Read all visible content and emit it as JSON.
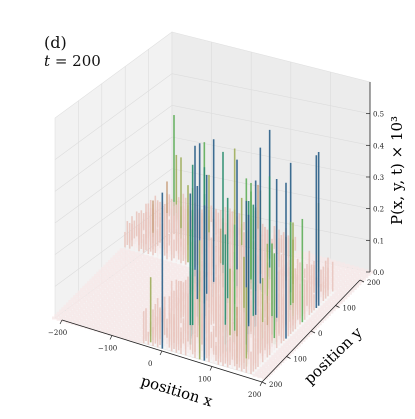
{
  "panel": {
    "label": "(d)",
    "time_prefix": "t",
    "time_value": "= 200"
  },
  "chart_data": {
    "type": "surface",
    "title": "",
    "xlabel": "position x",
    "ylabel": "position y",
    "zlabel": "P(x, y, t) × 10³",
    "xlim": [
      -200,
      200
    ],
    "ylim": [
      -200,
      200
    ],
    "zlim": [
      0,
      0.6
    ],
    "x_ticks": [
      "−200",
      "−100",
      "0",
      "100",
      "200"
    ],
    "y_ticks": [
      "200",
      "100",
      "0",
      "100",
      "200"
    ],
    "z_ticks": [
      "0.0",
      "0.1",
      "0.2",
      "0.3",
      "0.4",
      "0.5"
    ],
    "grid": true,
    "colormap": [
      "#f8ecec",
      "#e9c6bf",
      "#c9a07f",
      "#9fae5c",
      "#5fae5a",
      "#2a8d6e",
      "#2b5f88",
      "#222466"
    ]
  }
}
